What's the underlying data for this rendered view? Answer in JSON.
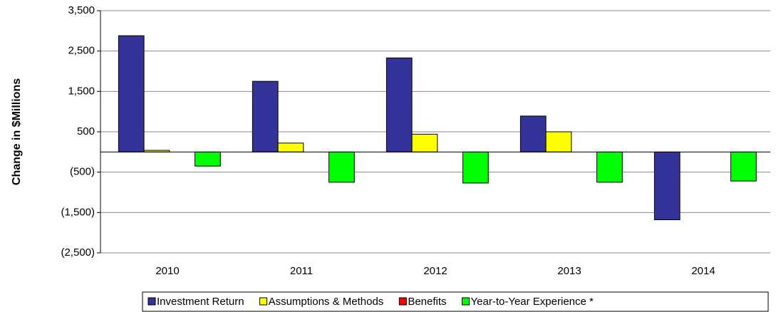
{
  "chart_data": {
    "type": "bar",
    "y_label": "Change in $Millions",
    "categories": [
      "2010",
      "2011",
      "2012",
      "2013",
      "2014"
    ],
    "series": [
      {
        "name": "Investment Return",
        "color": "#333399",
        "values": [
          2880,
          1750,
          2330,
          890,
          -1680
        ]
      },
      {
        "name": "Assumptions & Methods",
        "color": "#ffff00",
        "values": [
          40,
          220,
          440,
          500,
          0
        ]
      },
      {
        "name": "Benefits",
        "color": "#ff0000",
        "values": [
          0,
          0,
          0,
          0,
          0
        ]
      },
      {
        "name": "Year-to-Year Experience *",
        "color": "#00ff00",
        "values": [
          -350,
          -750,
          -770,
          -750,
          -720
        ]
      }
    ],
    "ylim": [
      -2500,
      3500
    ],
    "yticks": [
      {
        "value": 3500,
        "label": "3,500"
      },
      {
        "value": 2500,
        "label": "2,500"
      },
      {
        "value": 1500,
        "label": "1,500"
      },
      {
        "value": 500,
        "label": "500"
      },
      {
        "value": -500,
        "label": "(500)"
      },
      {
        "value": -1500,
        "label": "(1,500)"
      },
      {
        "value": -2500,
        "label": "(2,500)"
      }
    ],
    "grid": true,
    "legend": "bottom"
  }
}
